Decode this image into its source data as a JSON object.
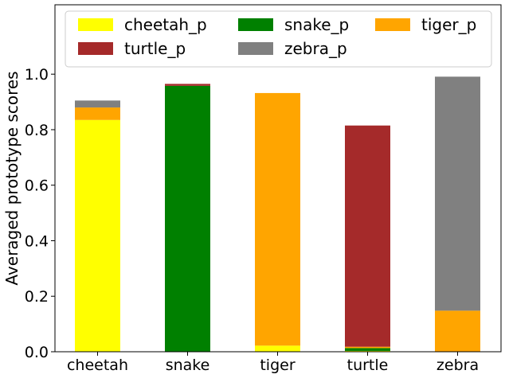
{
  "chart_data": {
    "type": "bar",
    "stacked": true,
    "categories": [
      "cheetah",
      "snake",
      "tiger",
      "turtle",
      "zebra"
    ],
    "series": [
      {
        "name": "cheetah_p",
        "color": "#ffff00",
        "values": [
          0.835,
          0.0,
          0.022,
          0.003,
          0.0
        ]
      },
      {
        "name": "snake_p",
        "color": "#008000",
        "values": [
          0.0,
          0.958,
          0.0,
          0.01,
          0.0
        ]
      },
      {
        "name": "tiger_p",
        "color": "#ffa500",
        "values": [
          0.045,
          0.0,
          0.91,
          0.005,
          0.148
        ]
      },
      {
        "name": "turtle_p",
        "color": "#a52a2a",
        "values": [
          0.0,
          0.007,
          0.0,
          0.797,
          0.0
        ]
      },
      {
        "name": "zebra_p",
        "color": "#808080",
        "values": [
          0.025,
          0.0,
          0.0,
          0.0,
          0.843
        ]
      }
    ],
    "xlabel": "",
    "ylabel": "Averaged prototype scores",
    "ylim": [
      0,
      1.25
    ],
    "yticks": [
      "0.0",
      "0.2",
      "0.4",
      "0.6",
      "0.8",
      "1.0"
    ],
    "grid": false,
    "legend_position": "top"
  }
}
